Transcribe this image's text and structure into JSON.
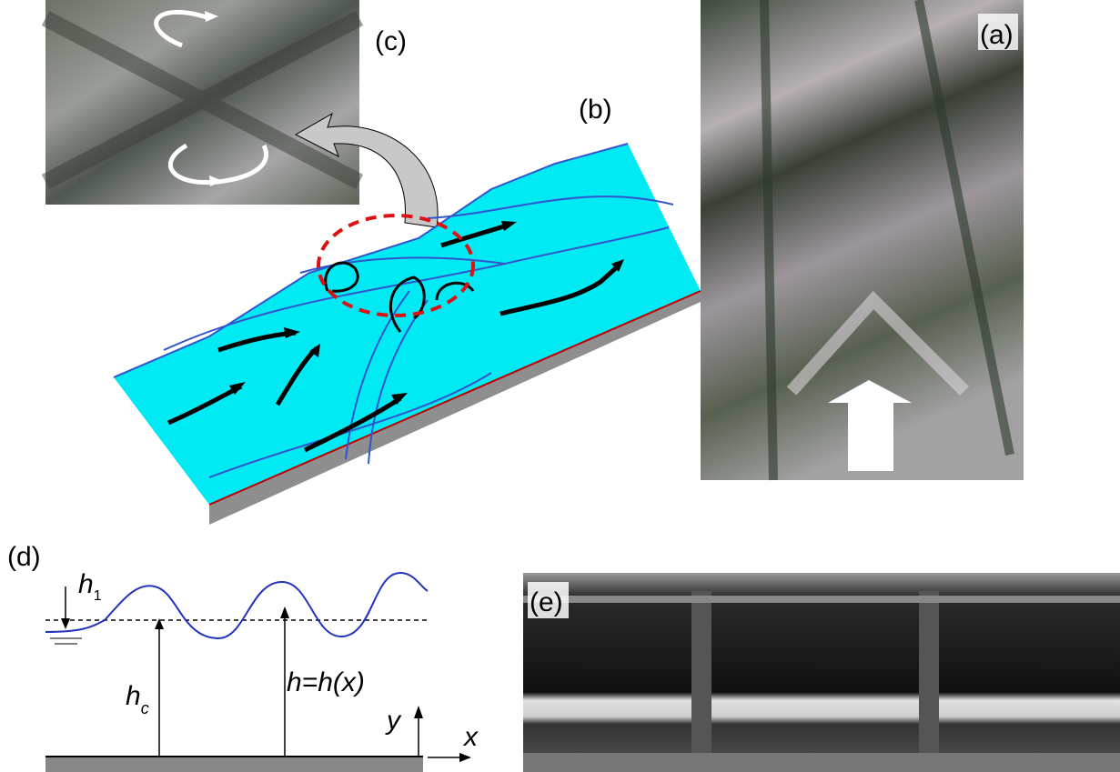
{
  "panels": {
    "a": {
      "label": "(a)"
    },
    "b": {
      "label": "(b)"
    },
    "c": {
      "label": "(c)"
    },
    "d": {
      "label": "(d)"
    },
    "e": {
      "label": "(e)"
    }
  },
  "sketch": {
    "h1": {
      "symbol": "h",
      "subscript": "1"
    },
    "hc": {
      "symbol": "h",
      "subscript": "c"
    },
    "profile": "h=h(x)",
    "y_axis": "y",
    "x_axis": "x"
  }
}
